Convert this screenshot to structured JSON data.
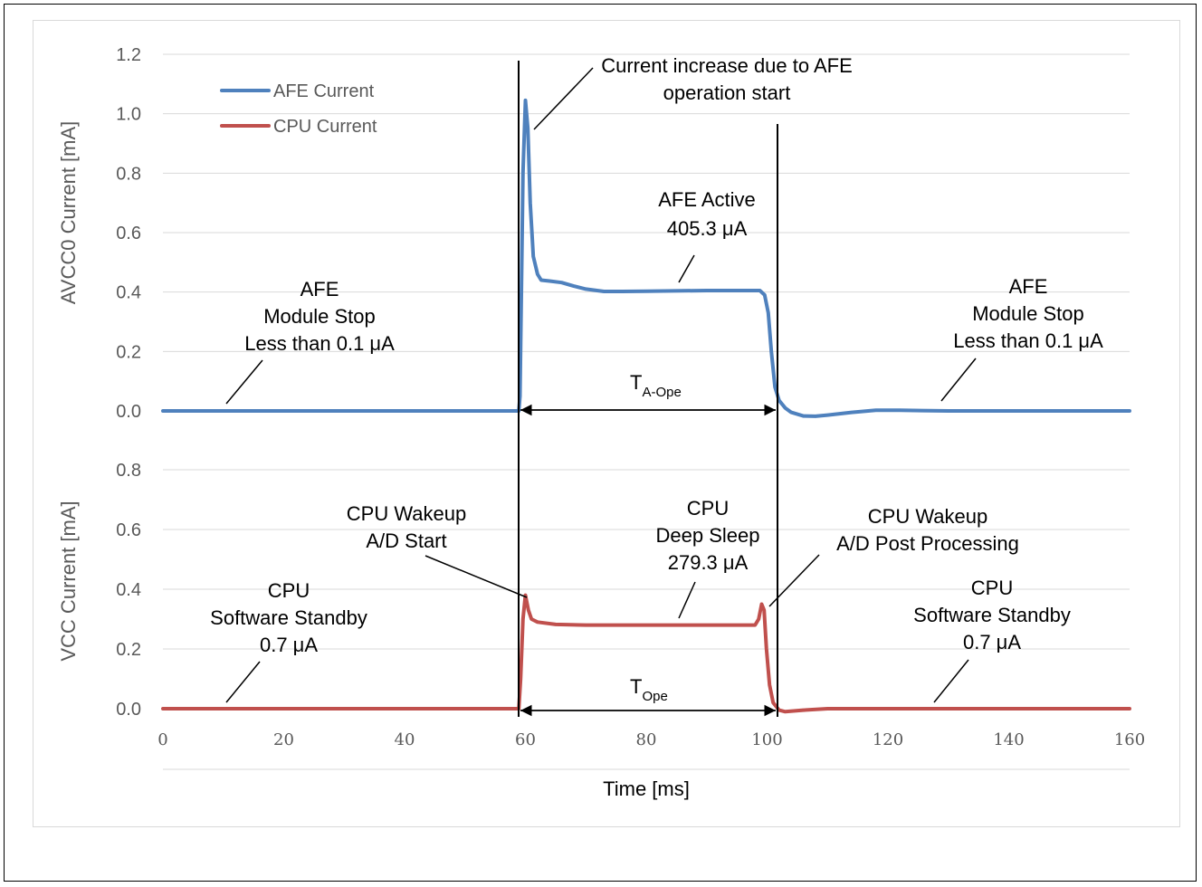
{
  "chart_data": {
    "type": "line",
    "xlabel": "Time [ms]",
    "x_ticks": [
      "0",
      "20",
      "40",
      "60",
      "80",
      "100",
      "120",
      "140",
      "160"
    ],
    "xlim": [
      0,
      160
    ],
    "grid": true,
    "legend_position": "top-left",
    "upper_axis": {
      "ylabel": "AVCC0 Current [mA]",
      "ylim": [
        0,
        1.2
      ],
      "ticks": [
        "0.0",
        "0.2",
        "0.4",
        "0.6",
        "0.8",
        "1.0",
        "1.2"
      ]
    },
    "lower_axis": {
      "ylabel": "VCC Current [mA]",
      "ylim": [
        0,
        0.8
      ],
      "ticks": [
        "0.0",
        "0.2",
        "0.4",
        "0.6",
        "0.8"
      ]
    },
    "series": [
      {
        "name": "AFE Current",
        "color": "#4f81bd",
        "axis": "upper",
        "points": [
          [
            0,
            0
          ],
          [
            20,
            0
          ],
          [
            40,
            0
          ],
          [
            58.9,
            0
          ],
          [
            59.1,
            0.05
          ],
          [
            59.6,
            0.8
          ],
          [
            60,
            1.045
          ],
          [
            60.4,
            0.95
          ],
          [
            60.8,
            0.7
          ],
          [
            61.3,
            0.52
          ],
          [
            62,
            0.46
          ],
          [
            62.6,
            0.44
          ],
          [
            64,
            0.437
          ],
          [
            66,
            0.432
          ],
          [
            68,
            0.42
          ],
          [
            70,
            0.41
          ],
          [
            73,
            0.402
          ],
          [
            76,
            0.402
          ],
          [
            80,
            0.403
          ],
          [
            90,
            0.405
          ],
          [
            97,
            0.405
          ],
          [
            98.8,
            0.405
          ],
          [
            99.6,
            0.39
          ],
          [
            100.2,
            0.33
          ],
          [
            100.7,
            0.2
          ],
          [
            101.3,
            0.08
          ],
          [
            102,
            0.035
          ],
          [
            103,
            0.01
          ],
          [
            104,
            -0.005
          ],
          [
            106,
            -0.017
          ],
          [
            108,
            -0.018
          ],
          [
            110,
            -0.014
          ],
          [
            114,
            -0.005
          ],
          [
            118,
            0.002
          ],
          [
            122,
            0.002
          ],
          [
            130,
            0
          ],
          [
            140,
            0
          ],
          [
            150,
            0
          ],
          [
            160,
            0
          ]
        ]
      },
      {
        "name": "CPU Current",
        "color": "#c0504d",
        "axis": "lower",
        "points": [
          [
            0,
            0
          ],
          [
            20,
            0
          ],
          [
            40,
            0
          ],
          [
            58.9,
            0
          ],
          [
            59.2,
            0.1
          ],
          [
            59.6,
            0.3
          ],
          [
            60,
            0.38
          ],
          [
            60.5,
            0.33
          ],
          [
            61,
            0.3
          ],
          [
            62,
            0.29
          ],
          [
            65,
            0.282
          ],
          [
            70,
            0.28
          ],
          [
            80,
            0.28
          ],
          [
            90,
            0.28
          ],
          [
            98,
            0.28
          ],
          [
            98.6,
            0.3
          ],
          [
            99.1,
            0.35
          ],
          [
            99.5,
            0.33
          ],
          [
            99.9,
            0.2
          ],
          [
            100.4,
            0.08
          ],
          [
            101,
            0.02
          ],
          [
            102,
            -0.005
          ],
          [
            103,
            -0.01
          ],
          [
            106,
            -0.005
          ],
          [
            110,
            0
          ],
          [
            120,
            0
          ],
          [
            140,
            0
          ],
          [
            160,
            0
          ]
        ]
      }
    ],
    "markers": [
      {
        "label": "T",
        "subscript": "A-Ope",
        "from": 59,
        "to": 101,
        "axis": "upper"
      },
      {
        "label": "T",
        "subscript": "Ope",
        "from": 59,
        "to": 101,
        "axis": "lower"
      }
    ],
    "annotations": {
      "afe_start": [
        "Current increase due to AFE",
        "operation start"
      ],
      "afe_active": [
        "AFE Active",
        "405.3 μA"
      ],
      "afe_stop_left": [
        "AFE",
        "Module Stop",
        "Less than 0.1 μA"
      ],
      "afe_stop_right": [
        "AFE",
        "Module Stop",
        "Less than 0.1 μA"
      ],
      "cpu_wakeup_start": [
        "CPU Wakeup",
        "A/D Start"
      ],
      "cpu_deep_sleep": [
        "CPU",
        "Deep Sleep",
        "279.3 μA"
      ],
      "cpu_wakeup_post": [
        "CPU Wakeup",
        "A/D Post Processing"
      ],
      "cpu_standby_left": [
        "CPU",
        "Software Standby",
        "0.7 μA"
      ],
      "cpu_standby_right": [
        "CPU",
        "Software Standby",
        "0.7 μA"
      ]
    }
  }
}
